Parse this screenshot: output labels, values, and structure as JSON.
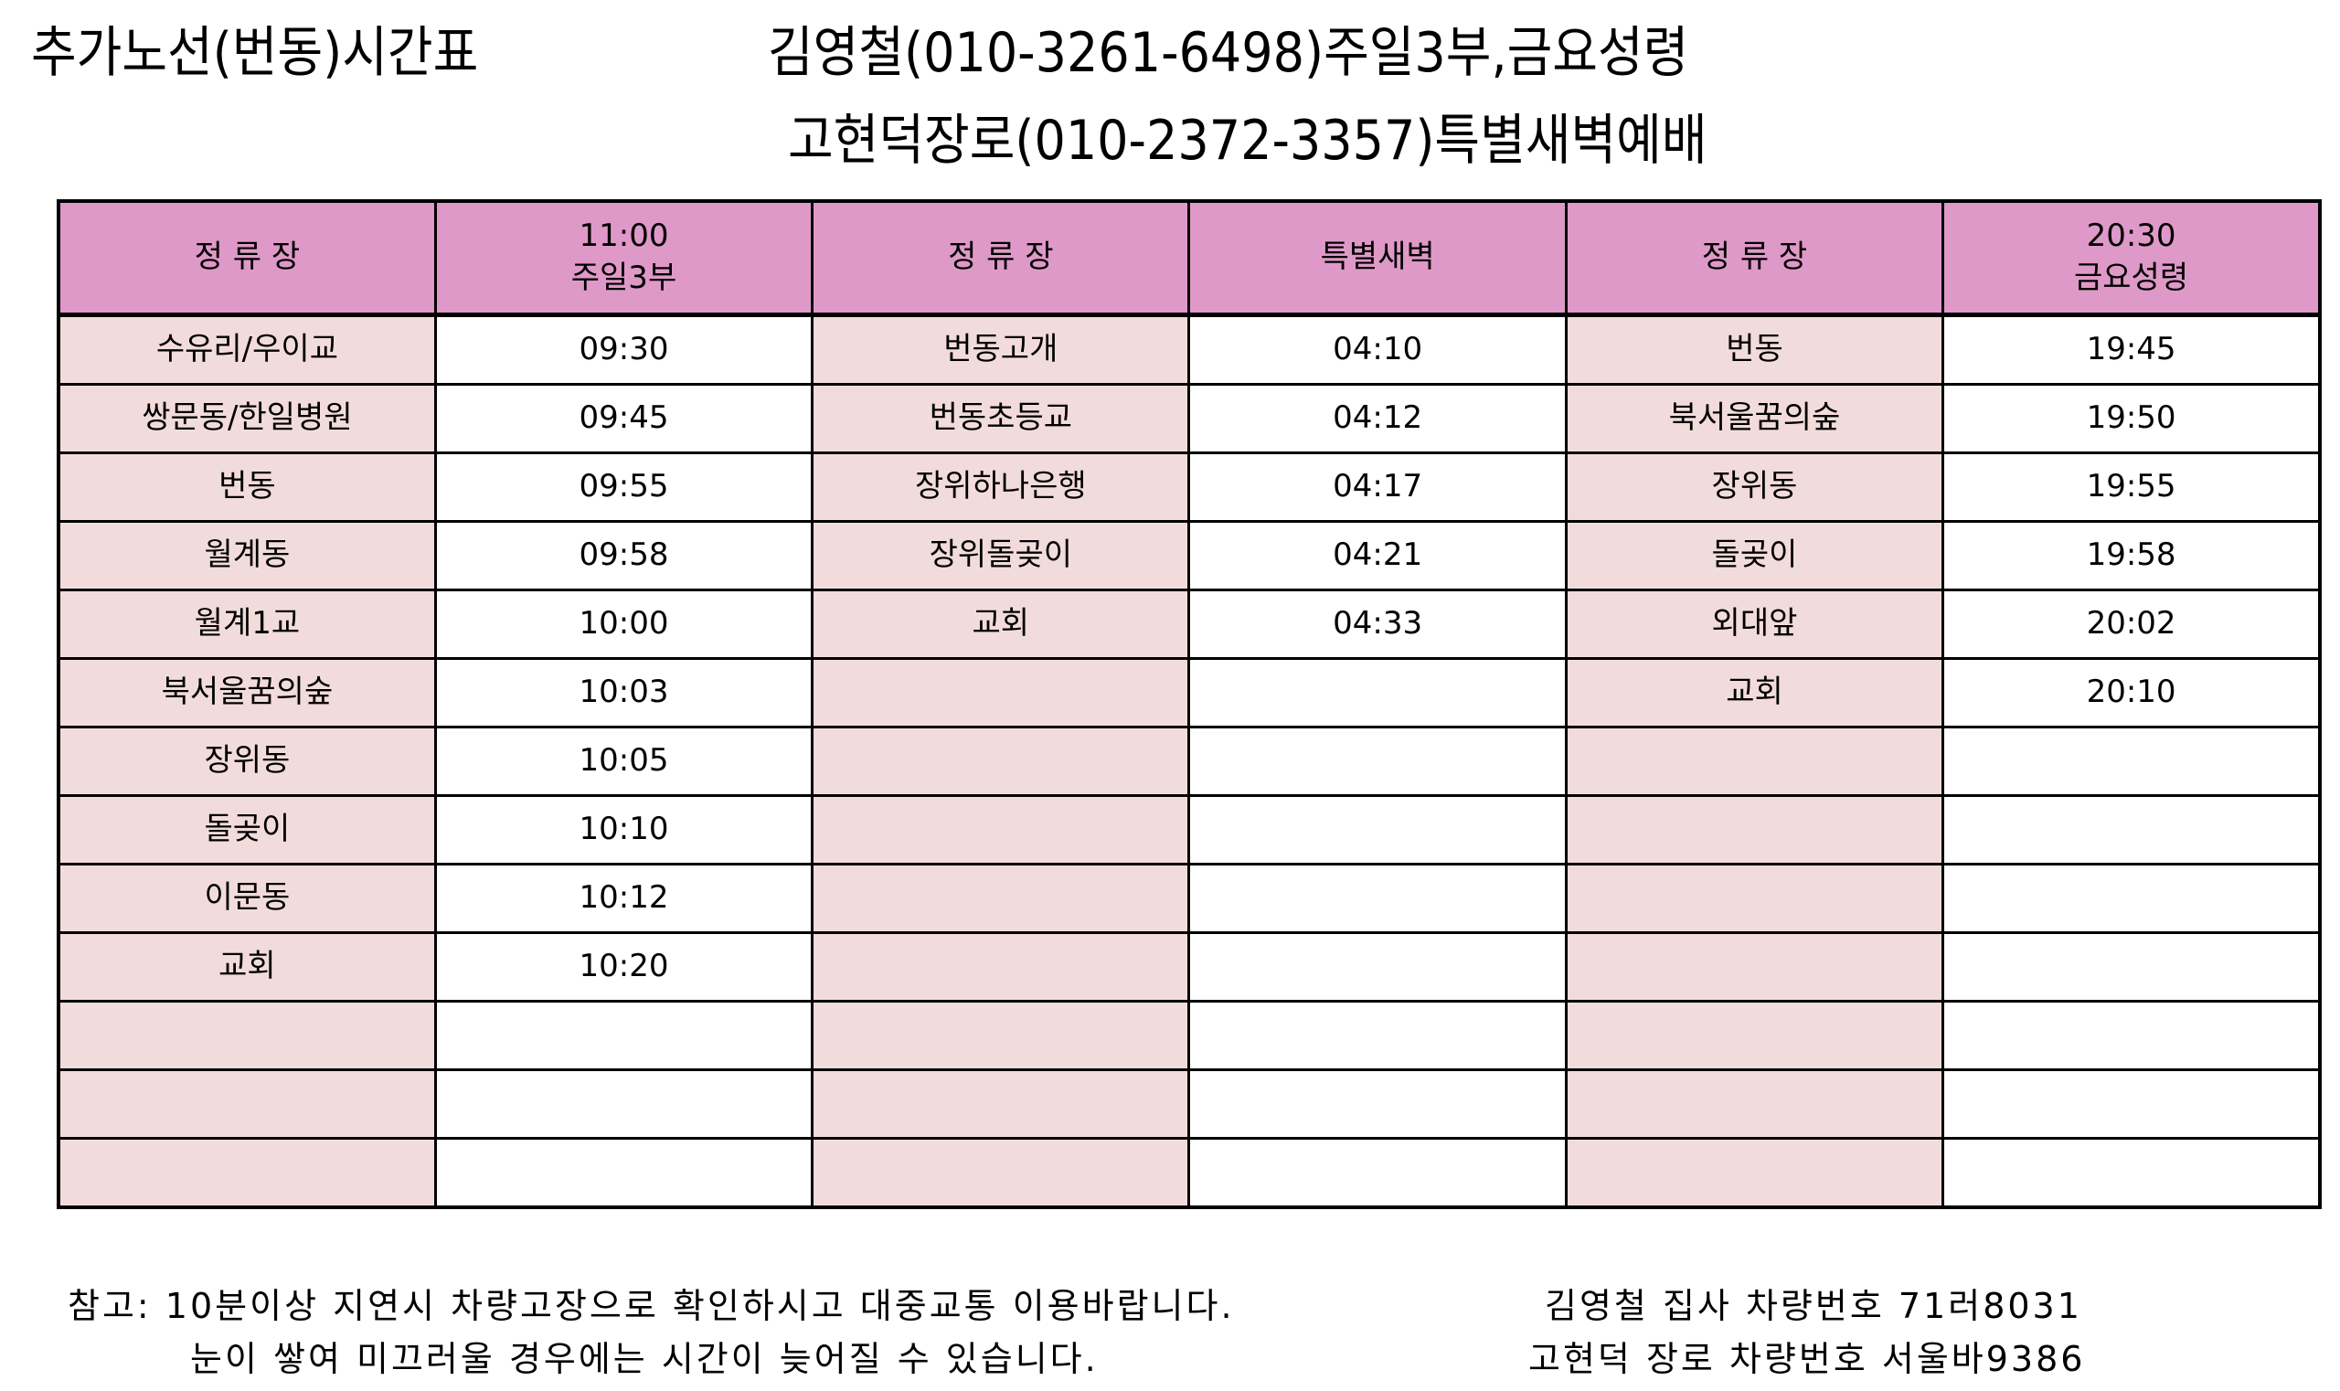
{
  "title": {
    "main": "추가노선(번동)시간표",
    "driver1": "김영철(010-3261-6498)주일3부,금요성령",
    "driver2": "고현덕장로(010-2372-3357)특별새벽예배"
  },
  "table": {
    "headers": [
      {
        "line1": "정 류 장",
        "line2": ""
      },
      {
        "line1": "11:00",
        "line2": "주일3부"
      },
      {
        "line1": "정 류 장",
        "line2": ""
      },
      {
        "line1": "특별새벽",
        "line2": ""
      },
      {
        "line1": "정 류 장",
        "line2": ""
      },
      {
        "line1": "20:30",
        "line2": "금요성령"
      }
    ],
    "rows": [
      [
        "수유리/우이교",
        "09:30",
        "번동고개",
        "04:10",
        "번동",
        "19:45"
      ],
      [
        "쌍문동/한일병원",
        "09:45",
        "번동초등교",
        "04:12",
        "북서울꿈의숲",
        "19:50"
      ],
      [
        "번동",
        "09:55",
        "장위하나은행",
        "04:17",
        "장위동",
        "19:55"
      ],
      [
        "월계동",
        "09:58",
        "장위돌곶이",
        "04:21",
        "돌곶이",
        "19:58"
      ],
      [
        "월계1교",
        "10:00",
        "교회",
        "04:33",
        "외대앞",
        "20:02"
      ],
      [
        "북서울꿈의숲",
        "10:03",
        "",
        "",
        "교회",
        "20:10"
      ],
      [
        "장위동",
        "10:05",
        "",
        "",
        "",
        ""
      ],
      [
        "돌곶이",
        "10:10",
        "",
        "",
        "",
        ""
      ],
      [
        "이문동",
        "10:12",
        "",
        "",
        "",
        ""
      ],
      [
        "교회",
        "10:20",
        "",
        "",
        "",
        ""
      ],
      [
        "",
        "",
        "",
        "",
        "",
        ""
      ],
      [
        "",
        "",
        "",
        "",
        "",
        ""
      ],
      [
        "",
        "",
        "",
        "",
        "",
        ""
      ]
    ]
  },
  "footer": {
    "note1": "참고: 10분이상 지연시 차량고장으로 확인하시고 대중교통 이용바랍니다.",
    "note2": "눈이 쌓여 미끄러울 경우에는 시간이 늦어질 수 있습니다.",
    "vehicle1": "김영철 집사 차량번호 71러8031",
    "vehicle2": "고현덕 장로 차량번호 서울바9386"
  },
  "colors": {
    "header": "#df99c8",
    "stop_cell": "#f2dcdb"
  }
}
